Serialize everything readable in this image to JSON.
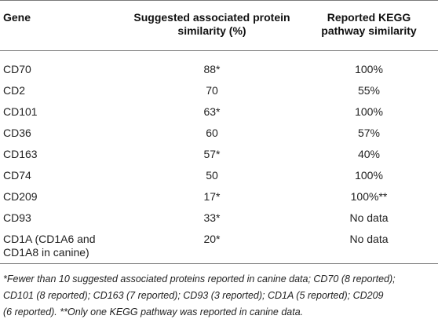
{
  "table": {
    "headers": {
      "gene": "Gene",
      "protein_line1": "Suggested associated protein",
      "protein_line2": "similarity (%)",
      "kegg_line1": "Reported KEGG",
      "kegg_line2": "pathway similarity"
    },
    "rows": [
      {
        "gene": "CD70",
        "protein": "88*",
        "kegg": "100%"
      },
      {
        "gene": "CD2",
        "protein": "70",
        "kegg": "55%"
      },
      {
        "gene": "CD101",
        "protein": "63*",
        "kegg": "100%"
      },
      {
        "gene": "CD36",
        "protein": "60",
        "kegg": "57%"
      },
      {
        "gene": "CD163",
        "protein": "57*",
        "kegg": "40%"
      },
      {
        "gene": "CD74",
        "protein": "50",
        "kegg": "100%"
      },
      {
        "gene": "CD209",
        "protein": "17*",
        "kegg": "100%**"
      },
      {
        "gene": "CD93",
        "protein": "33*",
        "kegg": "No data"
      },
      {
        "gene_line1": "CD1A (CD1A6 and",
        "gene_line2": "CD1A8 in canine)",
        "protein": "20*",
        "kegg": "No data"
      }
    ]
  },
  "footnote": {
    "line1": "*Fewer than 10 suggested associated proteins reported in canine data; CD70 (8 reported);",
    "line2": "CD101 (8 reported); CD163 (7 reported); CD93 (3 reported); CD1A (5 reported); CD209",
    "line3": "(6 reported). **Only one KEGG pathway was reported in canine data."
  }
}
